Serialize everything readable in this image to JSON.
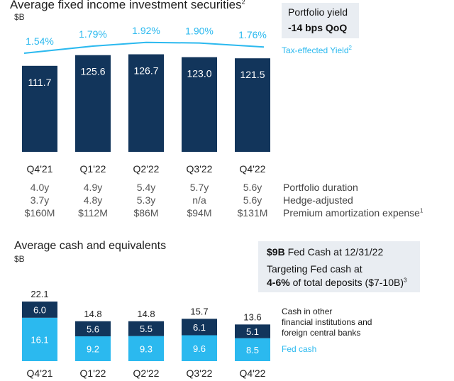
{
  "colors": {
    "navy": "#12355b",
    "cyan": "#2bb9ef",
    "yield_line": "#2bb9ef",
    "callout_bg": "#e9edf2"
  },
  "top": {
    "title": "Average fixed income investment securities",
    "title_sup": "2",
    "unit": "$B",
    "callout_line1": "Portfolio yield",
    "callout_line2": "-14 bps QoQ",
    "yield_legend": "Tax-effected Yield",
    "yield_legend_sup": "2"
  },
  "metrics": {
    "rows": [
      {
        "label": "Portfolio duration",
        "sup": "",
        "values": [
          "4.0y",
          "4.9y",
          "5.4y",
          "5.7y",
          "5.6y"
        ]
      },
      {
        "label": "Hedge-adjusted",
        "sup": "",
        "values": [
          "3.7y",
          "4.8y",
          "5.3y",
          "n/a",
          "5.6y"
        ]
      },
      {
        "label": "Premium amortization expense",
        "sup": "1",
        "values": [
          "$160M",
          "$112M",
          "$86M",
          "$94M",
          "$131M"
        ]
      }
    ]
  },
  "bottom": {
    "title": "Average cash and equivalents",
    "unit": "$B",
    "callout_bold1": "$9B",
    "callout_rest1": " Fed Cash at 12/31/22",
    "callout_line2": "Targeting Fed cash at",
    "callout_bold3": "4-6%",
    "callout_rest3": " of total deposits ($7-10B)",
    "callout_sup3": "3",
    "legend_other": [
      "Cash in other",
      "financial institutions and",
      "foreign central banks"
    ],
    "legend_fed": "Fed cash"
  },
  "chart_data": [
    {
      "type": "bar",
      "title": "Average fixed income investment securities",
      "ylabel": "$B",
      "categories": [
        "Q4'21",
        "Q1'22",
        "Q2'22",
        "Q3'22",
        "Q4'22"
      ],
      "series": [
        {
          "values": [
            111.7,
            125.6,
            126.7,
            123.0,
            121.5
          ]
        }
      ],
      "value_labels": [
        "111.7",
        "125.6",
        "126.7",
        "123.0",
        "121.5"
      ],
      "line": {
        "name": "Tax-effected Yield",
        "values": [
          1.54,
          1.79,
          1.92,
          1.9,
          1.76
        ],
        "labels": [
          "1.54%",
          "1.79%",
          "1.92%",
          "1.90%",
          "1.76%"
        ]
      },
      "ylim": [
        0,
        140
      ],
      "grid": false
    },
    {
      "type": "bar",
      "title": "Average cash and equivalents",
      "ylabel": "$B",
      "stacked": true,
      "categories": [
        "Q4'21",
        "Q1'22",
        "Q2'22",
        "Q3'22",
        "Q4'22"
      ],
      "series": [
        {
          "name": "Fed cash",
          "values": [
            16.1,
            9.2,
            9.3,
            9.6,
            8.5
          ]
        },
        {
          "name": "Cash in other financial institutions and foreign central banks",
          "values": [
            6.0,
            5.6,
            5.5,
            6.1,
            5.1
          ]
        }
      ],
      "totals": [
        "22.1",
        "14.8",
        "14.8",
        "15.7",
        "13.6"
      ],
      "ylim": [
        0,
        23
      ],
      "legend": "right",
      "grid": false
    }
  ]
}
